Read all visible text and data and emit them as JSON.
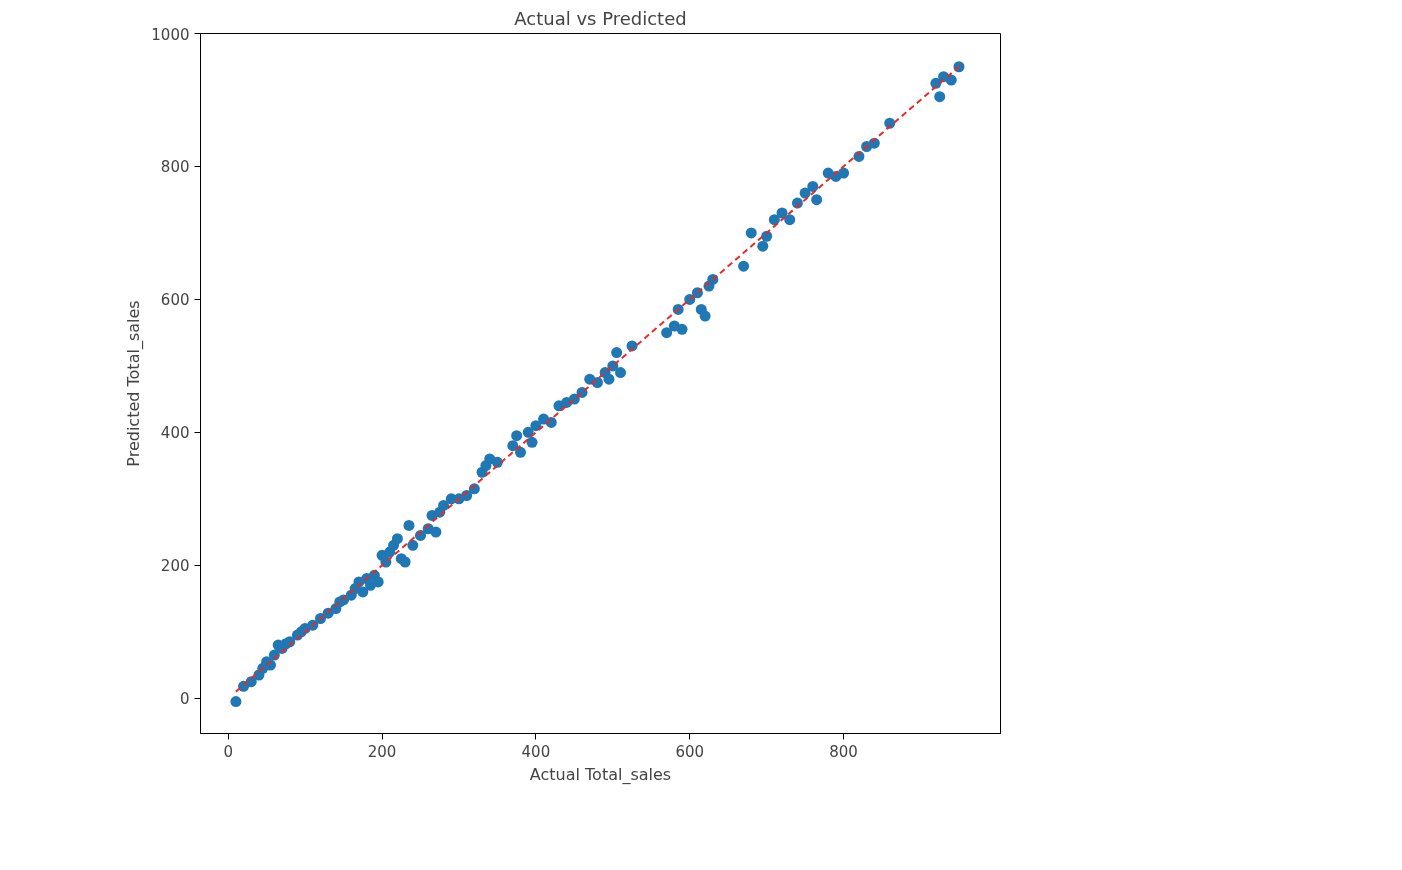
{
  "chart_data": {
    "type": "scatter",
    "title": "Actual vs Predicted",
    "xlabel": "Actual Total_sales",
    "ylabel": "Predicted Total_sales",
    "xlim": [
      -36,
      1004
    ],
    "ylim": [
      -53,
      1000
    ],
    "xticks": [
      0,
      200,
      400,
      600,
      800
    ],
    "yticks": [
      0,
      200,
      400,
      600,
      800,
      1000
    ],
    "grid": false,
    "marker": "circle",
    "series": [
      {
        "color": "#1f77b4",
        "x": [
          10,
          20,
          30,
          40,
          45,
          50,
          55,
          60,
          65,
          70,
          75,
          80,
          90,
          95,
          100,
          110,
          120,
          130,
          140,
          145,
          150,
          160,
          165,
          170,
          175,
          180,
          185,
          190,
          195,
          200,
          205,
          210,
          215,
          220,
          225,
          230,
          235,
          240,
          250,
          260,
          265,
          270,
          275,
          280,
          290,
          300,
          310,
          320,
          330,
          335,
          340,
          350,
          370,
          375,
          380,
          390,
          395,
          400,
          410,
          420,
          430,
          440,
          450,
          460,
          470,
          480,
          490,
          495,
          500,
          505,
          510,
          525,
          570,
          580,
          585,
          590,
          600,
          610,
          615,
          620,
          625,
          630,
          670,
          680,
          695,
          700,
          710,
          720,
          730,
          740,
          750,
          760,
          765,
          780,
          790,
          800,
          820,
          830,
          840,
          860,
          920,
          925,
          930,
          940,
          950
        ],
        "values": [
          -5,
          18,
          25,
          35,
          45,
          55,
          50,
          65,
          80,
          75,
          82,
          85,
          95,
          100,
          105,
          110,
          120,
          128,
          135,
          145,
          148,
          155,
          165,
          175,
          160,
          180,
          170,
          185,
          175,
          215,
          205,
          220,
          230,
          240,
          210,
          205,
          260,
          230,
          245,
          255,
          275,
          250,
          280,
          290,
          300,
          300,
          305,
          315,
          340,
          350,
          360,
          355,
          380,
          395,
          370,
          400,
          385,
          410,
          420,
          415,
          440,
          445,
          450,
          460,
          480,
          475,
          490,
          480,
          500,
          520,
          490,
          530,
          550,
          560,
          585,
          555,
          600,
          610,
          585,
          575,
          620,
          630,
          650,
          700,
          680,
          695,
          720,
          730,
          720,
          745,
          760,
          770,
          750,
          790,
          785,
          790,
          815,
          830,
          835,
          865,
          925,
          905,
          935,
          930,
          950
        ]
      },
      {
        "type": "line",
        "color": "#e8292b",
        "line_style": "dashed",
        "marker": "none",
        "x": [
          10,
          955
        ],
        "values": [
          10,
          955
        ]
      }
    ]
  }
}
